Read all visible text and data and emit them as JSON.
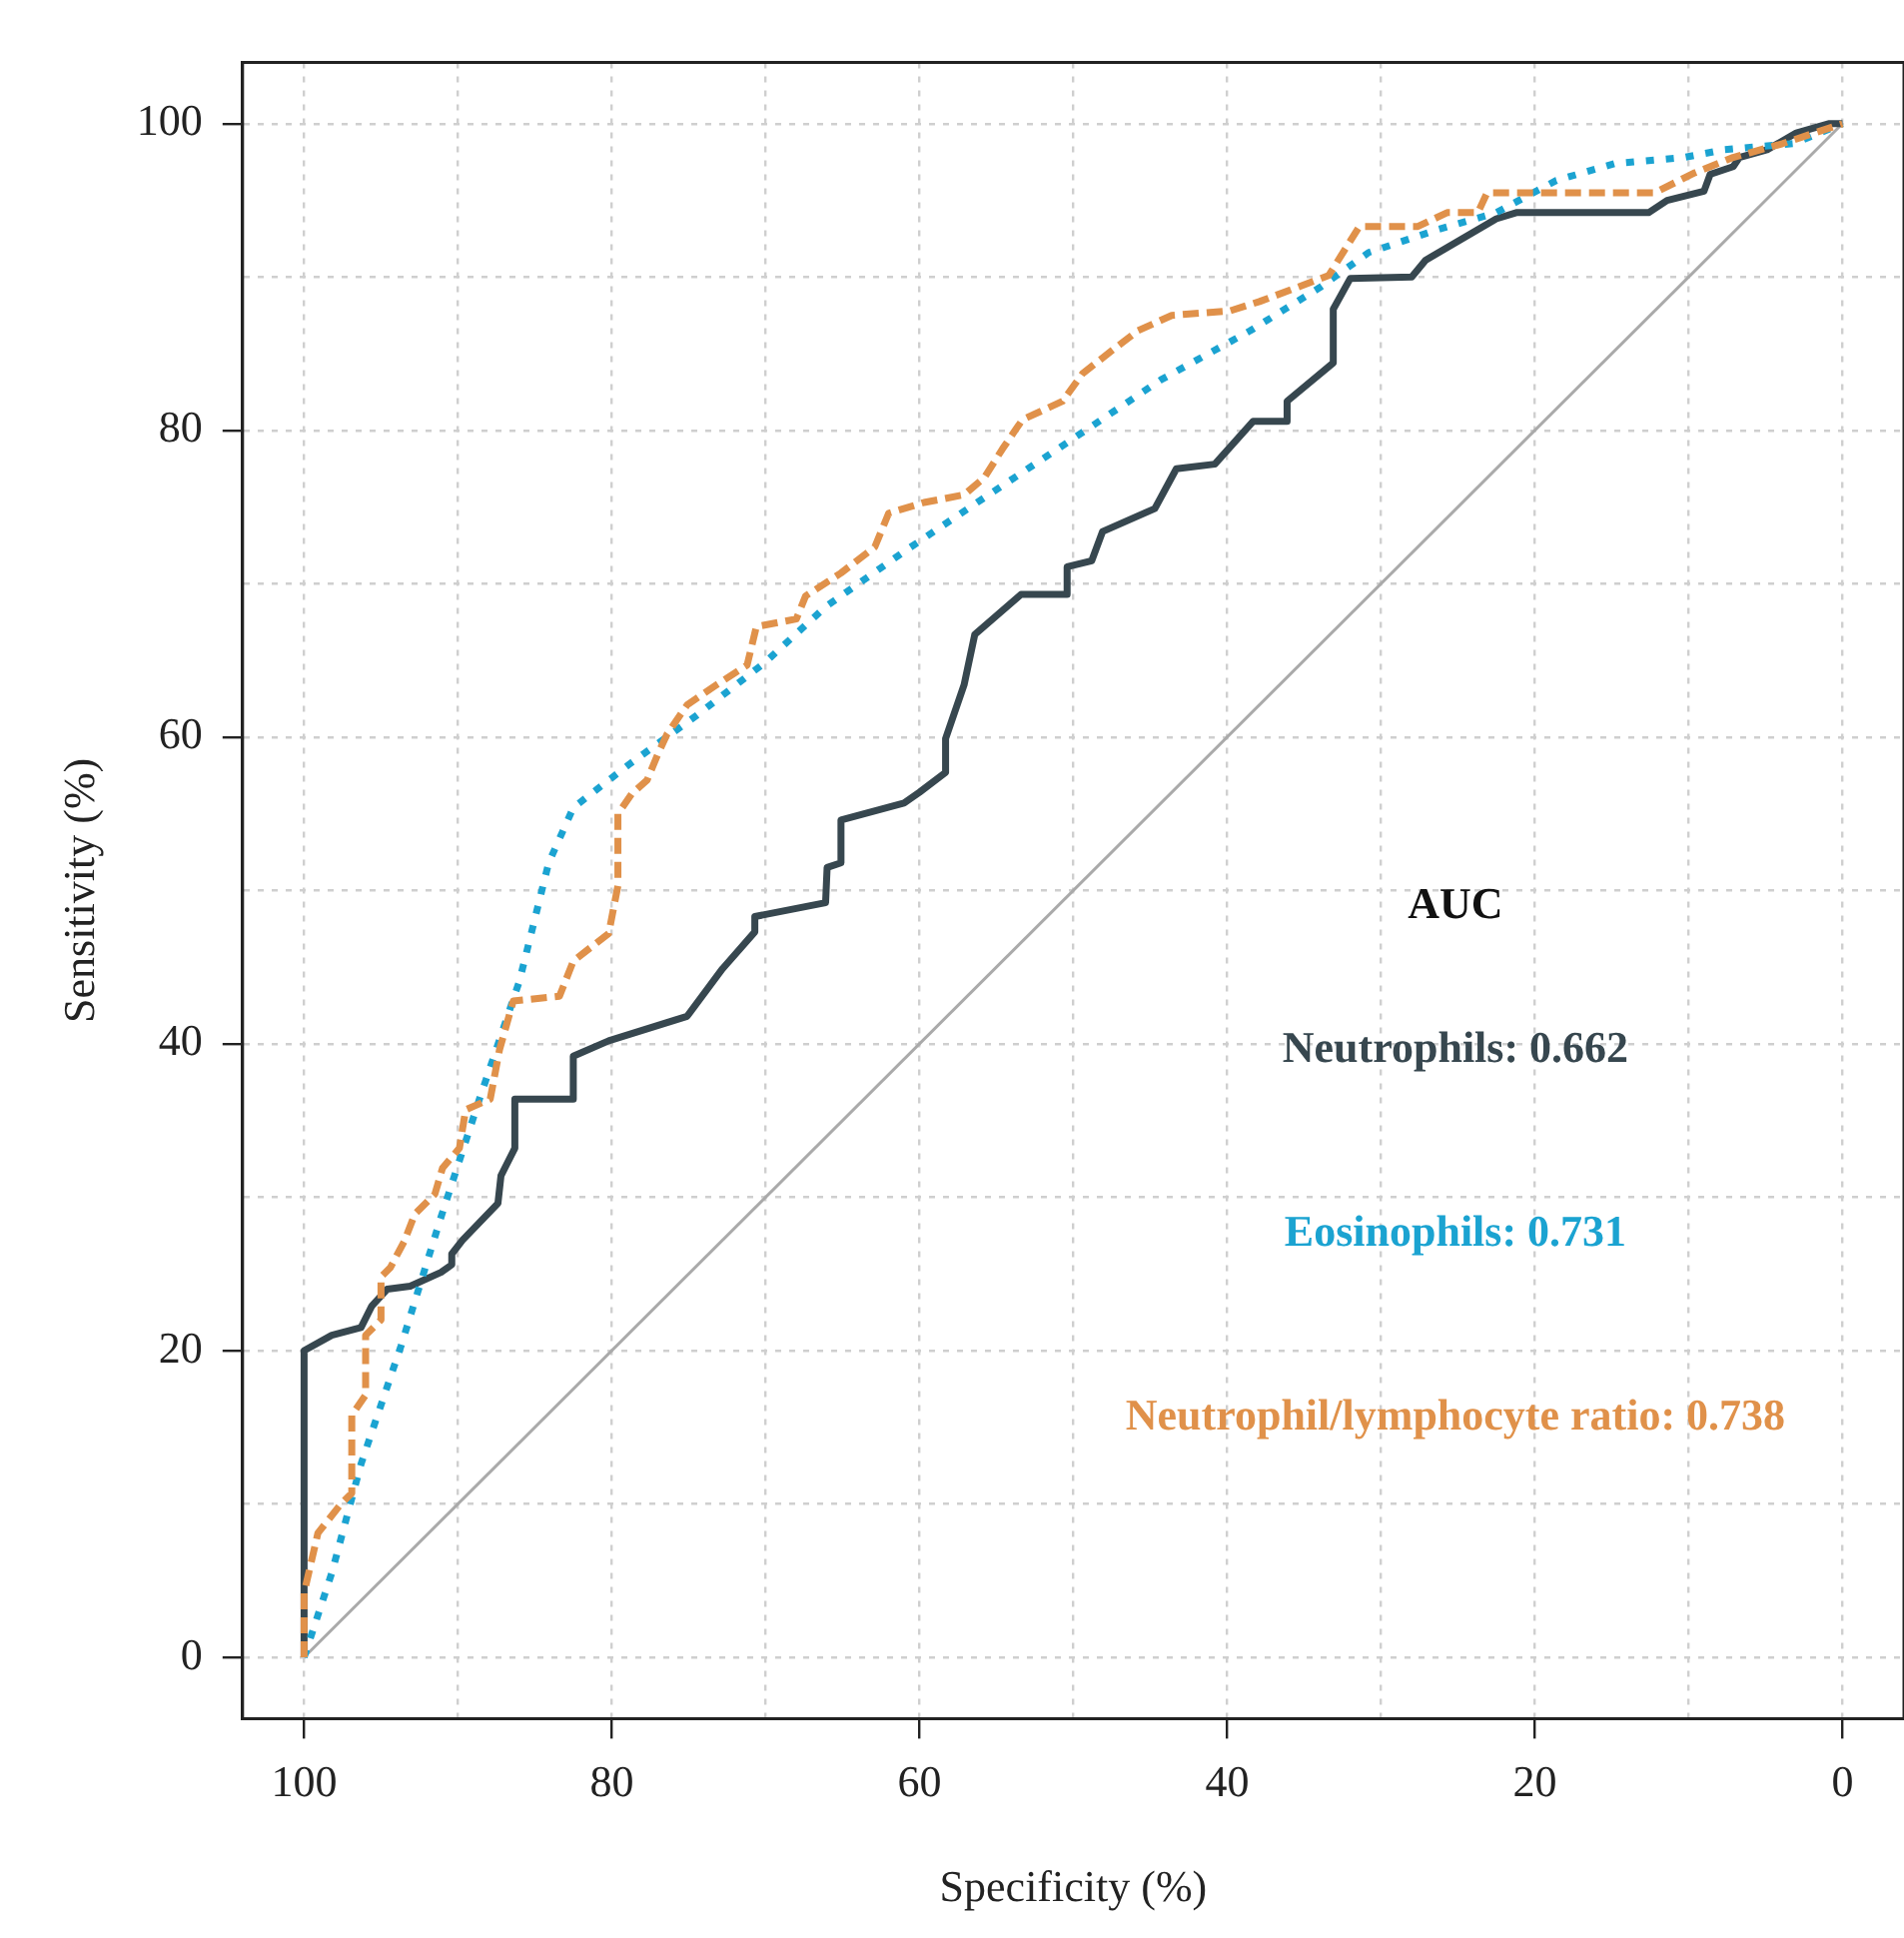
{
  "chart_data": {
    "type": "line",
    "xlabel": "Specificity (%)",
    "ylabel": "Sensitivity (%)",
    "legend_title": "AUC",
    "legend": "right",
    "grid": true,
    "xlim": [
      104,
      -4
    ],
    "ylim": [
      -4,
      104
    ],
    "xticks": [
      0,
      {
        "value": 10,
        "label": null
      },
      20,
      {
        "value": 30,
        "label": null
      },
      40,
      {
        "value": 50,
        "label": null
      },
      60,
      {
        "value": 70,
        "label": null
      },
      80,
      {
        "value": 90,
        "label": null
      },
      100
    ],
    "yticks": [
      0,
      {
        "value": 10,
        "label": null
      },
      20,
      {
        "value": 30,
        "label": null
      },
      40,
      {
        "value": 50,
        "label": null
      },
      60,
      {
        "value": 70,
        "label": null
      },
      80,
      {
        "value": 90,
        "label": null
      },
      100
    ],
    "series": [
      {
        "color": "#aaaaaa",
        "line_style": "solid",
        "x": [
          100,
          0
        ],
        "values": [
          0,
          100
        ]
      },
      {
        "name": "Neutrophils: 0.662",
        "color": "#37474f",
        "line_style": "solid",
        "x": [
          100,
          100,
          98.2,
          96.3,
          95.6,
          94.6,
          93.1,
          91.1,
          90.4,
          90.4,
          89.7,
          87.4,
          87.2,
          86.3,
          86.3,
          82.5,
          82.5,
          80.2,
          75.1,
          72.8,
          70.7,
          70.7,
          66.1,
          66,
          65.1,
          65.1,
          61,
          60,
          58.3,
          58.3,
          57.1,
          56.4,
          53.4,
          50.4,
          50.4,
          48.8,
          48.1,
          44.7,
          43.3,
          40.8,
          38.3,
          36.1,
          36.1,
          33.1,
          33.1,
          32,
          28,
          27.1,
          22.5,
          21.2,
          12.6,
          11.4,
          9,
          8.6,
          7.1,
          6.7,
          4.9,
          3,
          0.9,
          0
        ],
        "values": [
          0,
          20,
          21,
          21.5,
          22.9,
          24,
          24.2,
          25.1,
          25.6,
          26.3,
          27.2,
          29.6,
          31.4,
          33.2,
          36.4,
          36.4,
          39.2,
          40.2,
          41.8,
          44.9,
          47.3,
          48.3,
          49.2,
          51.5,
          51.8,
          54.6,
          55.7,
          56.4,
          57.7,
          59.9,
          63.4,
          66.7,
          69.3,
          69.3,
          71.1,
          71.5,
          73.4,
          74.9,
          77.5,
          77.8,
          80.6,
          80.6,
          81.9,
          84.4,
          87.9,
          89.9,
          90,
          91.1,
          93.8,
          94.2,
          94.2,
          95,
          95.6,
          96.7,
          97.2,
          97.8,
          98.3,
          99.4,
          100,
          100
        ]
      },
      {
        "name": "Eosinophils: 0.731",
        "color": "#1ba3d1",
        "line_style": "dotted",
        "x": [
          100,
          98.2,
          96.3,
          93.7,
          91.1,
          88.6,
          86,
          84.1,
          82.5,
          78.9,
          74.5,
          70,
          66.1,
          61,
          55.8,
          50.1,
          44.3,
          38.5,
          34,
          30.8,
          26.3,
          22.5,
          18.6,
          14.8,
          10.3,
          7.7,
          3.2,
          0
        ],
        "values": [
          0,
          5.5,
          12.6,
          20.3,
          28.7,
          36.4,
          44.1,
          51.8,
          55.4,
          58.2,
          61.4,
          64.9,
          68.5,
          72.1,
          75.6,
          79.4,
          83.3,
          86.5,
          89.3,
          91.6,
          93.1,
          94.2,
          96.3,
          97.4,
          97.8,
          98.3,
          98.7,
          100
        ]
      },
      {
        "name": "Neutrophil/lymphocyte ratio: 0.738",
        "color": "#e0914a",
        "line_style": "dashed",
        "x": [
          100,
          100,
          99.1,
          97.6,
          96.9,
          96.9,
          96,
          96,
          95,
          95,
          94.4,
          93.5,
          92.8,
          91.5,
          91,
          89.9,
          89.5,
          87.9,
          87.3,
          86.4,
          83.4,
          82.5,
          80.2,
          79.6,
          79.6,
          78.7,
          77.7,
          77,
          76.4,
          75.1,
          73.2,
          71.2,
          70.6,
          68,
          67.4,
          65.1,
          62.9,
          62,
          59.7,
          57.1,
          55.8,
          54.6,
          53.3,
          50.7,
          49.4,
          47.5,
          45.8,
          43.6,
          39.8,
          37.9,
          33.4,
          31.4,
          27.6,
          25.7,
          23.7,
          23.1,
          12.2,
          9.6,
          7.1,
          3.9,
          0
        ],
        "values": [
          0,
          4.2,
          8.1,
          10,
          10.7,
          15.8,
          17.1,
          21,
          22,
          24.8,
          25.4,
          27.1,
          28.9,
          30.2,
          31.9,
          33.2,
          35.7,
          36.4,
          39.6,
          42.8,
          43.1,
          45.4,
          47.2,
          50.3,
          55,
          56.3,
          57.2,
          58.9,
          60.2,
          62.1,
          63.4,
          64.7,
          67.2,
          67.7,
          69.2,
          70.7,
          72.4,
          74.6,
          75.3,
          75.8,
          76.9,
          78.8,
          80.7,
          81.9,
          83.7,
          85.2,
          86.5,
          87.5,
          87.8,
          88.4,
          90.1,
          93.3,
          93.3,
          94.2,
          94.2,
          95.5,
          95.5,
          96.8,
          97.8,
          98.7,
          100
        ]
      }
    ]
  }
}
